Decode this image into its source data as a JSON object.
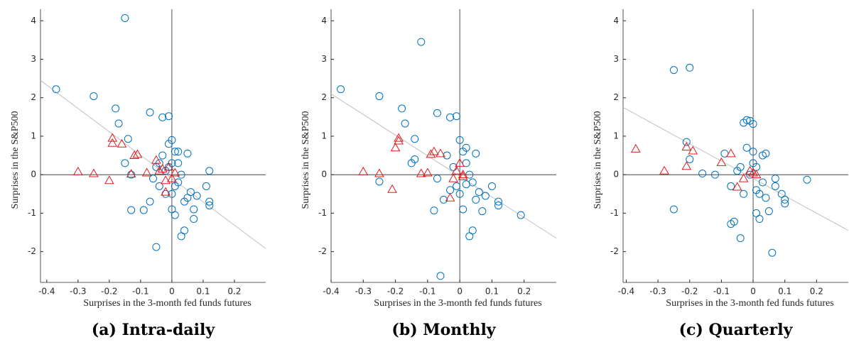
{
  "chart_data": [
    {
      "type": "scatter",
      "caption": "(a) Intra-daily",
      "xlabel": "Surprises in the 3-month fed funds futures",
      "ylabel": "Surprises in the S&P500",
      "xlim": [
        -0.42,
        0.3
      ],
      "ylim": [
        -2.8,
        4.3
      ],
      "xticks": [
        -0.4,
        -0.3,
        -0.2,
        -0.1,
        0,
        0.1,
        0.2
      ],
      "yticks": [
        -2,
        -1,
        0,
        1,
        2,
        3,
        4
      ],
      "fit_line": {
        "color": "#c0c0c0",
        "x": [
          -0.42,
          0.3
        ],
        "values": [
          2.45,
          -1.92
        ]
      },
      "series": [
        {
          "marker": "circle",
          "color": "#0072bd",
          "x": [
            -0.37,
            -0.25,
            -0.15,
            -0.18,
            -0.17,
            -0.14,
            -0.07,
            -0.01,
            -0.03,
            -0.15,
            -0.13,
            -0.13,
            -0.09,
            -0.07,
            -0.05,
            -0.05,
            -0.04,
            -0.03,
            -0.02,
            -0.01,
            0,
            0,
            0,
            0,
            0.01,
            0.01,
            0.02,
            0.02,
            0.03,
            0.04,
            0.05,
            0.05,
            0.06,
            0.07,
            0.07,
            0.08,
            0.11,
            0.12,
            0.12,
            0.12,
            -0.06,
            -0.02,
            0.03,
            -0.01,
            0.01,
            0.02,
            -0.04,
            0.04
          ],
          "values": [
            2.22,
            2.04,
            4.07,
            1.72,
            1.33,
            0.93,
            1.62,
            1.52,
            1.49,
            0.3,
            0,
            -0.92,
            -0.92,
            -0.7,
            -1.88,
            0.2,
            -0.3,
            0.5,
            0.1,
            0.8,
            0.9,
            0.3,
            -0.5,
            -0.9,
            -1.05,
            0.6,
            -0.2,
            0.3,
            -1.6,
            -1.45,
            0.55,
            -0.6,
            -0.45,
            -0.9,
            -1.15,
            -0.55,
            -0.3,
            0.1,
            -0.7,
            -0.8,
            -0.1,
            -0.5,
            0,
            0.2,
            -0.3,
            0.6,
            0.3,
            -0.7
          ]
        },
        {
          "marker": "triangle",
          "color": "#e31a1c",
          "x": [
            -0.3,
            -0.25,
            -0.2,
            -0.19,
            -0.19,
            -0.16,
            -0.11,
            -0.12,
            -0.13,
            -0.08,
            -0.05,
            -0.04,
            -0.02,
            -0.02,
            -0.01,
            0,
            0.01,
            -0.03
          ],
          "values": [
            0.08,
            0.03,
            -0.15,
            0.95,
            0.82,
            0.8,
            0.53,
            0.5,
            0.02,
            0.05,
            0.38,
            0.1,
            -0.45,
            -0.15,
            0.2,
            -0.1,
            0.05,
            0.15
          ]
        }
      ]
    },
    {
      "type": "scatter",
      "caption": "(b) Monthly",
      "xlabel": "Surprises in the 3-month fed funds futures",
      "ylabel": "Surprises in the S&P500",
      "xlim": [
        -0.4,
        0.3
      ],
      "ylim": [
        -2.8,
        4.3
      ],
      "xticks": [
        -0.4,
        -0.3,
        -0.2,
        -0.1,
        0,
        0.1,
        0.2
      ],
      "yticks": [
        -2,
        -1,
        0,
        1,
        2,
        3,
        4
      ],
      "fit_line": {
        "color": "#c0c0c0",
        "x": [
          -0.4,
          0.3
        ],
        "values": [
          2.1,
          -1.65
        ]
      },
      "series": [
        {
          "marker": "circle",
          "color": "#0072bd",
          "x": [
            -0.37,
            -0.25,
            -0.12,
            -0.18,
            -0.17,
            -0.14,
            -0.07,
            -0.01,
            -0.03,
            -0.15,
            -0.14,
            -0.25,
            -0.08,
            -0.06,
            -0.05,
            -0.04,
            -0.02,
            0,
            0,
            0.01,
            0.01,
            0.02,
            0.03,
            0.04,
            0.05,
            0.05,
            0.06,
            0.07,
            0.08,
            0.1,
            0.12,
            0.12,
            0.19,
            -0.07,
            -0.03,
            0.02,
            0.03,
            -0.01,
            0.02,
            0.04
          ],
          "values": [
            2.22,
            2.04,
            3.45,
            1.72,
            1.33,
            0.93,
            1.6,
            1.52,
            1.49,
            0.3,
            0.4,
            -0.18,
            -0.93,
            -2.63,
            -0.65,
            0.5,
            0.2,
            0.9,
            -0.5,
            -0.9,
            0.6,
            -0.25,
            -1.6,
            -1.45,
            0.55,
            -0.65,
            -0.45,
            -0.95,
            -0.55,
            -0.3,
            -0.7,
            -0.8,
            -1.05,
            -0.1,
            -0.4,
            0.3,
            0,
            -0.3,
            0.7,
            -0.2
          ]
        },
        {
          "marker": "triangle",
          "color": "#e31a1c",
          "x": [
            -0.3,
            -0.25,
            -0.21,
            -0.19,
            -0.2,
            -0.19,
            -0.09,
            -0.08,
            -0.12,
            -0.1,
            -0.06,
            -0.03,
            -0.02,
            0,
            0.01,
            -0.01,
            0.01
          ],
          "values": [
            0.08,
            0.03,
            -0.38,
            0.95,
            0.7,
            0.88,
            0.53,
            0.6,
            0.03,
            0.05,
            0.55,
            -0.6,
            -0.1,
            0.3,
            0,
            0.1,
            -0.05
          ]
        }
      ]
    },
    {
      "type": "scatter",
      "caption": "(c) Quarterly",
      "xlabel": "Surprises in the 3-month fed funds futures",
      "ylabel": "Surprises in the S&P500",
      "xlim": [
        -0.41,
        0.3
      ],
      "ylim": [
        -2.8,
        4.3
      ],
      "xticks": [
        -0.4,
        -0.3,
        -0.2,
        -0.1,
        0,
        0.1,
        0.2
      ],
      "yticks": [
        -2,
        -1,
        0,
        1,
        2,
        3,
        4
      ],
      "fit_line": {
        "color": "#c0c0c0",
        "x": [
          -0.41,
          0.3
        ],
        "values": [
          1.75,
          -1.45
        ]
      },
      "series": [
        {
          "marker": "circle",
          "color": "#0072bd",
          "x": [
            -0.25,
            -0.2,
            -0.21,
            -0.2,
            -0.25,
            -0.16,
            -0.12,
            -0.09,
            -0.07,
            -0.07,
            -0.06,
            -0.05,
            -0.04,
            -0.03,
            -0.03,
            -0.02,
            -0.01,
            0,
            0,
            0,
            0.01,
            0.01,
            0.02,
            0.03,
            0.03,
            0.04,
            0.05,
            0.06,
            0.07,
            0.07,
            0.09,
            0.1,
            0.1,
            0.17,
            -0.04,
            -0.02,
            0.02,
            0.04,
            -0.01,
            0.01
          ],
          "values": [
            2.72,
            2.78,
            0.85,
            0.4,
            -0.9,
            0.03,
            0,
            0.55,
            -0.3,
            -1.28,
            -1.22,
            0.1,
            -1.65,
            -0.5,
            1.35,
            1.42,
            1.4,
            1.32,
            0.6,
            0.3,
            -0.4,
            -1.0,
            -1.15,
            0.5,
            -0.2,
            -0.6,
            -0.95,
            -2.03,
            -0.1,
            -0.3,
            -0.5,
            -0.75,
            -0.65,
            -0.13,
            0.2,
            0.7,
            -0.5,
            0.55,
            0,
            0.2
          ]
        },
        {
          "marker": "triangle",
          "color": "#e31a1c",
          "x": [
            -0.37,
            -0.28,
            -0.21,
            -0.21,
            -0.19,
            -0.1,
            -0.07,
            -0.05,
            -0.03,
            -0.01,
            0,
            0.01
          ],
          "values": [
            0.67,
            0.1,
            0.22,
            0.72,
            0.62,
            0.32,
            0.55,
            -0.32,
            -0.1,
            0.1,
            0.05,
            0
          ]
        }
      ]
    }
  ]
}
